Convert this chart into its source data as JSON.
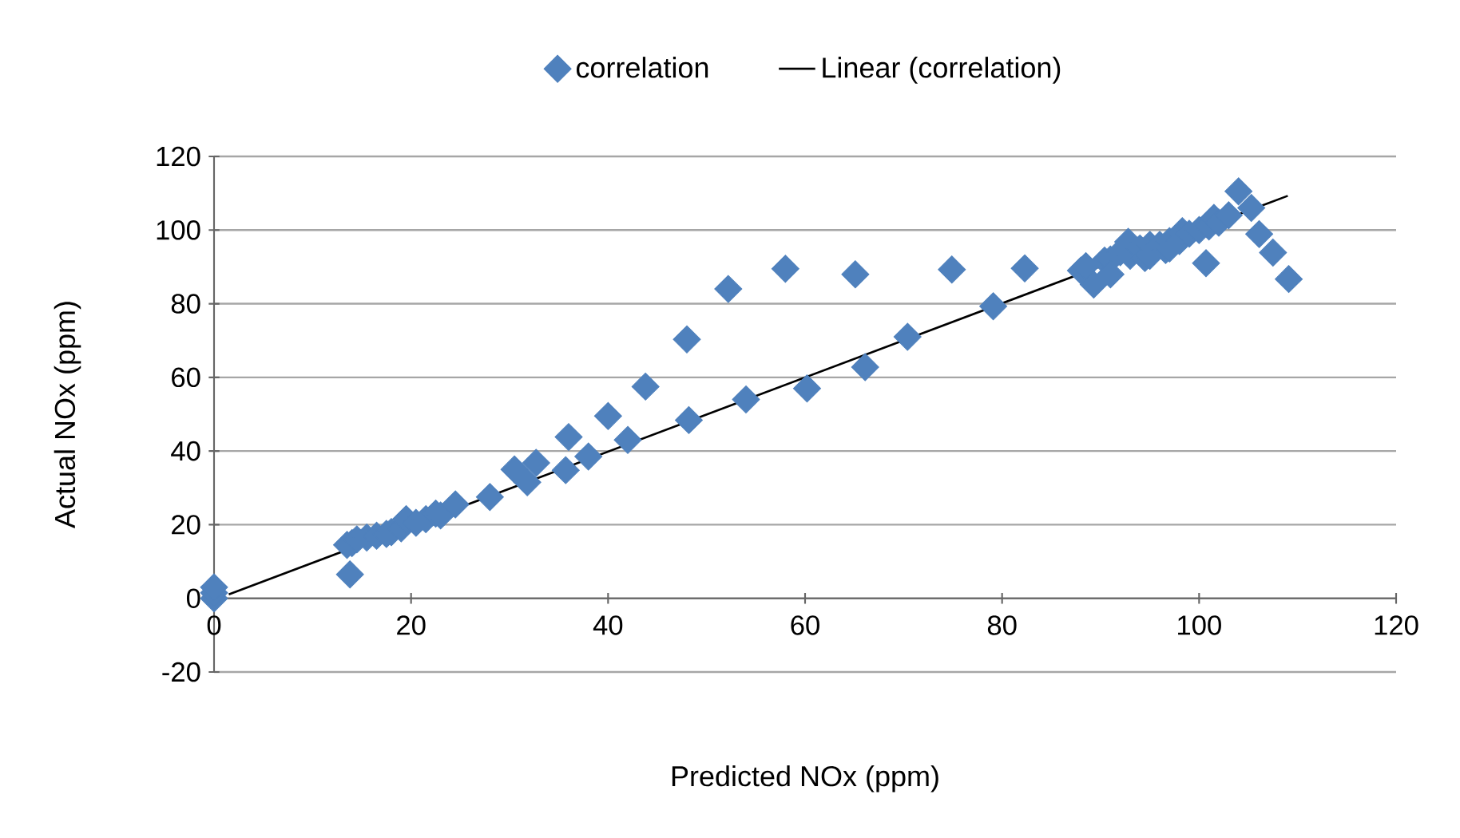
{
  "chart_data": {
    "type": "scatter",
    "xlabel": "Predicted NOx (ppm)",
    "ylabel": "Actual NOx (ppm)",
    "xlim": [
      0,
      120
    ],
    "ylim": [
      -20,
      120
    ],
    "xticks": [
      0,
      20,
      40,
      60,
      80,
      100,
      120
    ],
    "yticks": [
      -20,
      0,
      20,
      40,
      60,
      80,
      100,
      120
    ],
    "grid": "y",
    "legend": "top",
    "series": [
      {
        "name": "correlation",
        "color": "#4f81bd",
        "marker": "diamond",
        "x": [
          0,
          0,
          0,
          13.8,
          13.5,
          14,
          14.5,
          15.5,
          16.5,
          17.5,
          18,
          19,
          19.5,
          20.5,
          21.5,
          22.5,
          23,
          24.5,
          28,
          30.5,
          31.8,
          32.7,
          35.7,
          36,
          38,
          40,
          42,
          43.8,
          48,
          48.2,
          52.2,
          54,
          58,
          60.2,
          65.1,
          66.1,
          70.4,
          74.9,
          79.1,
          82.3,
          88,
          88.5,
          89.3,
          90.4,
          91,
          91,
          92,
          92.8,
          93,
          94,
          94.5,
          95,
          95,
          96,
          96.6,
          97,
          97,
          98,
          98.3,
          99,
          100,
          100.7,
          101,
          101.5,
          102,
          103,
          104,
          105.3,
          106.1,
          107.5,
          109.1
        ],
        "values": [
          0,
          1.5,
          3,
          6.5,
          14.5,
          15,
          16,
          16.5,
          17,
          17.5,
          18,
          19,
          21.5,
          20.5,
          21.5,
          23,
          22.5,
          25.5,
          27.5,
          35,
          31.5,
          36.8,
          34.8,
          43.8,
          38.5,
          49.5,
          43,
          57.5,
          70.3,
          48.4,
          84,
          54,
          89.5,
          57,
          88,
          62.8,
          71,
          89.3,
          79.3,
          89.6,
          89,
          90.2,
          85.2,
          91.7,
          92,
          88,
          94,
          96.8,
          93,
          95,
          92.4,
          96,
          93,
          96,
          94.6,
          97,
          95,
          97,
          99.7,
          99,
          100,
          91,
          101,
          103.3,
          102,
          104,
          110.5,
          106,
          98.9,
          93.9,
          86.7
        ]
      },
      {
        "name": "Linear (correlation)",
        "type": "line",
        "color": "#000000",
        "marker": "none",
        "x": [
          1.5,
          109
        ],
        "values": [
          1.1,
          109.3
        ]
      }
    ]
  }
}
